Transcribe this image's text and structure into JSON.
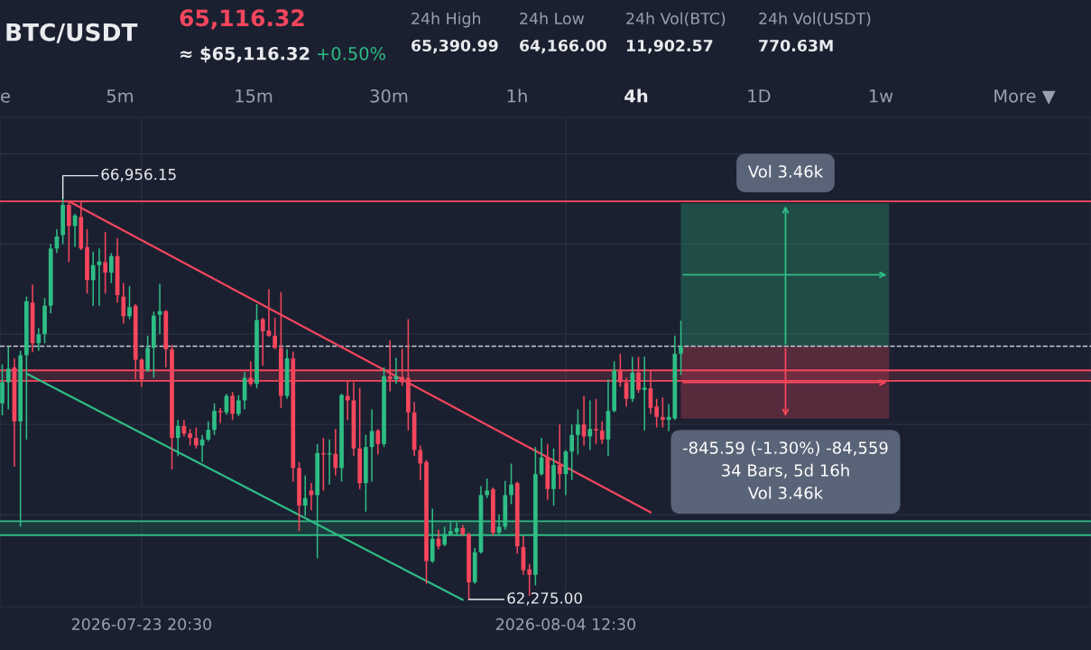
{
  "chart_data": {
    "type": "candlestick",
    "title": "BTC/USDT",
    "annotations": [
      "65,116.32",
      "≈ $65,116.32",
      "+0.50%",
      "24h High",
      "65,390.99",
      "24h Low",
      "64,166.00",
      "24h Vol(BTC)",
      "11,902.57",
      "24h Vol(USDT)",
      "770.63M",
      "e",
      "5m",
      "15m",
      "30m",
      "1h",
      "4h",
      "1D",
      "1w",
      "More ▼",
      {
        "text": "66,956.15",
        "x": "2026-07-21T16:30",
        "y": 66956.15
      },
      {
        "text": "62,275.00",
        "x": "2026-08-01T20:30",
        "y": 62275.0
      }
    ],
    "x": [
      "2026-07-20T00:30",
      "2026-07-20T04:30",
      "2026-07-20T08:30",
      "2026-07-20T12:30",
      "2026-07-20T16:30",
      "2026-07-20T20:30",
      "2026-07-21T00:30",
      "2026-07-21T04:30",
      "2026-07-21T08:30",
      "2026-07-21T12:30",
      "2026-07-21T16:30",
      "2026-07-21T20:30",
      "2026-07-22T00:30",
      "2026-07-22T04:30",
      "2026-07-22T08:30",
      "2026-07-22T12:30",
      "2026-07-22T16:30",
      "2026-07-22T20:30",
      "2026-07-23T00:30",
      "2026-07-23T04:30",
      "2026-07-23T08:30",
      "2026-07-23T12:30",
      "2026-07-23T16:30",
      "2026-07-23T20:30",
      "2026-07-24T00:30",
      "2026-07-24T04:30",
      "2026-07-24T08:30",
      "2026-07-24T12:30",
      "2026-07-24T16:30",
      "2026-07-24T20:30",
      "2026-07-25T00:30",
      "2026-07-25T04:30",
      "2026-07-25T08:30",
      "2026-07-25T12:30",
      "2026-07-25T16:30",
      "2026-07-25T20:30",
      "2026-07-26T00:30",
      "2026-07-26T04:30",
      "2026-07-26T08:30",
      "2026-07-26T12:30",
      "2026-07-26T16:30",
      "2026-07-26T20:30",
      "2026-07-27T00:30",
      "2026-07-27T04:30",
      "2026-07-27T08:30",
      "2026-07-27T12:30",
      "2026-07-27T16:30",
      "2026-07-27T20:30",
      "2026-07-28T00:30",
      "2026-07-28T04:30",
      "2026-07-28T08:30",
      "2026-07-28T12:30",
      "2026-07-28T16:30",
      "2026-07-28T20:30",
      "2026-07-29T00:30",
      "2026-07-29T04:30",
      "2026-07-29T08:30",
      "2026-07-29T12:30",
      "2026-07-29T16:30",
      "2026-07-29T20:30",
      "2026-07-30T00:30",
      "2026-07-30T04:30",
      "2026-07-30T08:30",
      "2026-07-30T12:30",
      "2026-07-30T16:30",
      "2026-07-30T20:30",
      "2026-07-31T00:30",
      "2026-07-31T04:30",
      "2026-07-31T08:30",
      "2026-07-31T12:30",
      "2026-07-31T16:30",
      "2026-07-31T20:30",
      "2026-08-01T00:30",
      "2026-08-01T04:30",
      "2026-08-01T08:30",
      "2026-08-01T12:30",
      "2026-08-01T16:30",
      "2026-08-01T20:30",
      "2026-08-02T00:30",
      "2026-08-02T04:30",
      "2026-08-02T08:30",
      "2026-08-02T12:30",
      "2026-08-02T16:30",
      "2026-08-02T20:30",
      "2026-08-03T00:30",
      "2026-08-03T04:30",
      "2026-08-03T08:30",
      "2026-08-03T12:30",
      "2026-08-03T16:30",
      "2026-08-03T20:30",
      "2026-08-04T00:30",
      "2026-08-04T04:30",
      "2026-08-04T08:30",
      "2026-08-04T12:30",
      "2026-08-04T16:30",
      "2026-08-04T20:30",
      "2026-08-05T00:30",
      "2026-08-05T04:30",
      "2026-08-05T08:30",
      "2026-08-05T12:30",
      "2026-08-05T16:30",
      "2026-08-05T20:30",
      "2026-08-06T00:30",
      "2026-08-06T04:30",
      "2026-08-06T08:30",
      "2026-08-06T12:30",
      "2026-08-06T16:30",
      "2026-08-06T20:30",
      "2026-08-07T00:30",
      "2026-08-07T04:30",
      "2026-08-07T08:30",
      "2026-08-07T12:30",
      "2026-08-07T16:30"
    ],
    "ohlc": [
      [
        64562,
        65018,
        64422,
        64808
      ],
      [
        64808,
        65229,
        64492,
        64966
      ],
      [
        64983,
        65088,
        63825,
        64352
      ],
      [
        64352,
        65176,
        63123,
        65124
      ],
      [
        65124,
        65808,
        64141,
        65755
      ],
      [
        65738,
        65948,
        65159,
        65264
      ],
      [
        65264,
        65439,
        65176,
        65369
      ],
      [
        65369,
        65790,
        65264,
        65702
      ],
      [
        65702,
        66422,
        65615,
        66369
      ],
      [
        66369,
        66597,
        66317,
        66510
      ],
      [
        66527,
        66956.15,
        66422,
        66878
      ],
      [
        66878,
        66931,
        66211,
        66632
      ],
      [
        66632,
        66773,
        66387,
        66755
      ],
      [
        66738,
        66913,
        66352,
        66369
      ],
      [
        66387,
        66597,
        65843,
        66001
      ],
      [
        66001,
        66334,
        65702,
        66176
      ],
      [
        66176,
        66369,
        65702,
        66218
      ],
      [
        66211,
        66562,
        65843,
        66088
      ],
      [
        66088,
        66317,
        65966,
        66281
      ],
      [
        66281,
        66492,
        65738,
        65825
      ],
      [
        65808,
        65966,
        65492,
        65580
      ],
      [
        65580,
        65931,
        65545,
        65685
      ],
      [
        65702,
        65720,
        64843,
        65071
      ],
      [
        65071,
        65088,
        64755,
        64843
      ],
      [
        64948,
        65352,
        64930,
        65211
      ],
      [
        65211,
        65632,
        64860,
        65587
      ],
      [
        65597,
        65959,
        65369,
        65639
      ],
      [
        65639,
        65650,
        64983,
        65194
      ],
      [
        65194,
        65246,
        63790,
        64159
      ],
      [
        64159,
        64369,
        63948,
        64299
      ],
      [
        64299,
        64369,
        64176,
        64211
      ],
      [
        64211,
        64264,
        64071,
        64159
      ],
      [
        64159,
        64281,
        64036,
        64071
      ],
      [
        64071,
        64194,
        63878,
        64141
      ],
      [
        64141,
        64352,
        64123,
        64253
      ],
      [
        64253,
        64562,
        64194,
        64474
      ],
      [
        64474,
        64509,
        64334,
        64457
      ],
      [
        64457,
        64674,
        64429,
        64650
      ],
      [
        64650,
        64695,
        64369,
        64439
      ],
      [
        64439,
        64660,
        64415,
        64597
      ],
      [
        64597,
        64930,
        64492,
        64860
      ],
      [
        64860,
        65053,
        64766,
        64790
      ],
      [
        64790,
        65720,
        64738,
        65534
      ],
      [
        65545,
        65562,
        65001,
        65404
      ],
      [
        65411,
        65895,
        65341,
        65352
      ],
      [
        65352,
        65562,
        65194,
        65211
      ],
      [
        65211,
        65860,
        64509,
        64650
      ],
      [
        64650,
        65194,
        64615,
        65088
      ],
      [
        65088,
        65166,
        63650,
        63808
      ],
      [
        63808,
        63878,
        63071,
        63369
      ],
      [
        63369,
        63720,
        63246,
        63457
      ],
      [
        63544,
        63632,
        63316,
        63492
      ],
      [
        63492,
        64088,
        62755,
        63983
      ],
      [
        63983,
        64159,
        63544,
        63966
      ],
      [
        63966,
        64141,
        63615,
        63980
      ],
      [
        63973,
        64264,
        63720,
        63808
      ],
      [
        63808,
        64674,
        63650,
        64660
      ],
      [
        64650,
        64825,
        64369,
        64597
      ],
      [
        64597,
        64808,
        63948,
        64036
      ],
      [
        64036,
        64744,
        63562,
        63632
      ],
      [
        63632,
        64194,
        63299,
        64053
      ],
      [
        64053,
        64492,
        63650,
        64239
      ],
      [
        64246,
        64264,
        63966,
        64088
      ],
      [
        64088,
        64983,
        64053,
        64878
      ],
      [
        64878,
        65299,
        64702,
        64843
      ],
      [
        64843,
        65095,
        64790,
        64878
      ],
      [
        64871,
        65201,
        64766,
        64808
      ],
      [
        64860,
        65545,
        64246,
        64457
      ],
      [
        64457,
        64580,
        63948,
        64018
      ],
      [
        64018,
        64071,
        63667,
        63860
      ],
      [
        63878,
        63902,
        62457,
        62720
      ],
      [
        62720,
        63334,
        62702,
        62983
      ],
      [
        62983,
        63088,
        62860,
        62895
      ],
      [
        62913,
        63123,
        62895,
        63036
      ],
      [
        63036,
        63176,
        63018,
        63071
      ],
      [
        63060,
        63176,
        63018,
        63106
      ],
      [
        63106,
        63141,
        63018,
        63036
      ],
      [
        63036,
        63053,
        62275.0,
        62474
      ],
      [
        62474,
        62878,
        62457,
        62825
      ],
      [
        62825,
        63597,
        62808,
        63492
      ],
      [
        63492,
        63685,
        63457,
        63544
      ],
      [
        63562,
        63580,
        63018,
        63053
      ],
      [
        63053,
        63264,
        63036,
        63123
      ],
      [
        63123,
        63657,
        63088,
        63492
      ],
      [
        63492,
        63860,
        63386,
        63615
      ],
      [
        63632,
        63650,
        62808,
        62895
      ],
      [
        62885,
        63018,
        62562,
        62615
      ],
      [
        62625,
        62685,
        62316,
        62562
      ],
      [
        62562,
        64053,
        62439,
        63737
      ],
      [
        63737,
        64159,
        63720,
        63930
      ],
      [
        63930,
        64088,
        63439,
        63562
      ],
      [
        63562,
        64036,
        63369,
        63843
      ],
      [
        63843,
        64316,
        63562,
        63737
      ],
      [
        63737,
        64018,
        63492,
        64001
      ],
      [
        64001,
        64316,
        63667,
        64194
      ],
      [
        64194,
        64492,
        63966,
        64316
      ],
      [
        64316,
        64650,
        64071,
        64176
      ],
      [
        64176,
        64597,
        64018,
        64264
      ],
      [
        64264,
        64615,
        64088,
        64246
      ],
      [
        64246,
        64352,
        64088,
        64141
      ],
      [
        64141,
        64843,
        63948,
        64474
      ],
      [
        64474,
        65053,
        64457,
        64948
      ],
      [
        64948,
        65141,
        64755,
        64808
      ],
      [
        64808,
        64860,
        64527,
        64615
      ],
      [
        64615,
        65106,
        64580,
        64920
      ],
      [
        64920,
        65106,
        64685,
        64720
      ],
      [
        64720,
        65106,
        64246,
        64745
      ],
      [
        64738,
        64948,
        64439,
        64509
      ],
      [
        64527,
        64615,
        64281,
        64404
      ],
      [
        64404,
        64632,
        64281,
        64369
      ],
      [
        64369,
        64555,
        64239,
        64404
      ],
      [
        64387,
        65352,
        64369,
        65141
      ],
      [
        65141,
        65527,
        64895,
        65229
      ]
    ],
    "series": [
      {
        "type": "line",
        "color": "#f6465d",
        "x": [
          "2026-07-21T20:30",
          "2026-08-06T20:30"
        ],
        "values": [
          66920,
          63290
        ]
      },
      {
        "type": "line",
        "color": "#2ebd85",
        "x": [
          "2026-07-20T16:30",
          "2026-08-01T16:30"
        ],
        "values": [
          64910,
          62270
        ]
      }
    ],
    "ref_lines": [
      {
        "axis": "y",
        "value": 66920,
        "color": "#f6465d",
        "line_style": "solid"
      },
      {
        "axis": "y",
        "value": 65229,
        "color": "#c8ccd4",
        "line_style": "dashed"
      },
      {
        "axis": "y",
        "value": 64948,
        "color": "#f6465d",
        "line_style": "solid"
      },
      {
        "axis": "y",
        "value": 64825,
        "color": "#f6465d",
        "line_style": "solid"
      },
      {
        "axis": "y",
        "value": 63187,
        "color": "#2ebd85",
        "line_style": "solid"
      },
      {
        "axis": "y",
        "value": 63025,
        "color": "#2ebd85",
        "line_style": "solid"
      }
    ],
    "bands": [
      {
        "axis": "y",
        "from": 64825,
        "to": 64948,
        "color": "#f6465d"
      },
      {
        "axis": "y",
        "from": 63025,
        "to": 63187,
        "color": "#2ebd85"
      },
      {
        "axis": "y",
        "from": 65229,
        "to": 66896,
        "color": "#2ebd85",
        "label": "Vol 3.46k"
      },
      {
        "axis": "y",
        "from": 64383,
        "to": 65229,
        "color": "#f6465d",
        "label": "-845.59 (-1.30%) -84,559\n34 Bars, 5d 16h\nVol 3.46k"
      }
    ],
    "xlim": [
      "2026-07-19T23:00",
      "2026-08-18T23:15"
    ],
    "xticks": [
      {
        "value": "2026-07-23T20:30",
        "label": "2026-07-23 20:30"
      },
      {
        "value": "2026-08-04T12:30",
        "label": "2026-08-04 12:30"
      }
    ],
    "ylim": [
      62190,
      67900
    ],
    "yticks": [
      {
        "value": 63264,
        "label": null
      },
      {
        "value": 64317,
        "label": null
      },
      {
        "value": 65369,
        "label": null
      },
      {
        "value": 66422,
        "label": null
      },
      {
        "value": 67475,
        "label": null
      }
    ],
    "tick_labels": "x",
    "grid": true
  }
}
